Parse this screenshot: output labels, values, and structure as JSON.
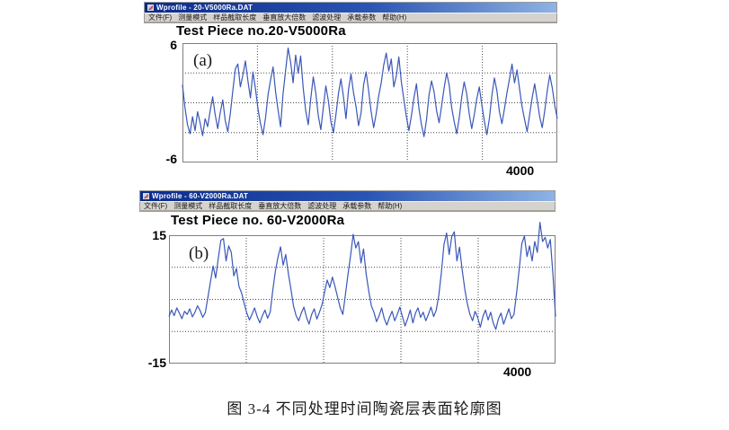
{
  "caption": "图 3-4  不同处理时间陶瓷层表面轮廓图",
  "colors": {
    "titlebar_left": "#0a2a8c",
    "titlebar_right": "#8fb3e4",
    "menubar_bg": "#d6d3ce",
    "plot_border": "#7f7f7f",
    "grid": "#4a4a4a",
    "profile_line": "#3a57b8"
  },
  "windows": [
    {
      "title": "Wprofile - 20-V5000Ra.DAT",
      "menus": [
        "文件(F)",
        "测量模式",
        "样品截取长度",
        "垂直放大倍数",
        "滤波处理",
        "承载参数",
        "帮助(H)"
      ],
      "chart_title": "Test Piece no.20-V5000Ra",
      "panel_label": "(a)",
      "y_max_label": "6",
      "y_min_label": "-6",
      "x_end_label": "4000"
    },
    {
      "title": "Wprofile - 60-V2000Ra.DAT",
      "menus": [
        "文件(F)",
        "测量模式",
        "样品截取长度",
        "垂直放大倍数",
        "滤波处理",
        "承载参数",
        "帮助(H)"
      ],
      "chart_title": "Test Piece no. 60-V2000Ra",
      "panel_label": "(b)",
      "y_max_label": "15",
      "y_min_label": "-15",
      "x_end_label": "4000"
    }
  ],
  "chart_data": [
    {
      "type": "line",
      "title": "Test Piece no.20-V5000Ra",
      "panel": "(a)",
      "xlabel": "",
      "ylabel": "",
      "x_range": [
        0,
        4000
      ],
      "ylim": [
        -6,
        6
      ],
      "x_end_tick": "4000",
      "y_tick_labels": [
        "6",
        "-6"
      ],
      "grid": true,
      "color": "#3a57b8",
      "series": [
        {
          "name": "surface profile 20-V5000Ra",
          "values": [
            1.8,
            -0.5,
            -2.2,
            -3.1,
            -1.4,
            -2.8,
            -0.9,
            -2.0,
            -3.3,
            -1.6,
            -2.4,
            -0.8,
            0.6,
            -1.2,
            -2.6,
            -1.0,
            0.3,
            -1.8,
            -2.9,
            -1.1,
            1.2,
            3.4,
            3.9,
            1.6,
            2.8,
            4.2,
            2.2,
            0.5,
            3.1,
            1.4,
            -0.6,
            -2.1,
            -3.2,
            -1.5,
            0.8,
            2.3,
            3.6,
            1.1,
            -0.7,
            -2.4,
            0.9,
            3.2,
            5.5,
            4.1,
            2.0,
            4.8,
            3.0,
            4.7,
            1.5,
            -0.8,
            -2.2,
            0.4,
            2.6,
            1.0,
            -1.3,
            -2.7,
            -0.5,
            1.7,
            0.2,
            -1.9,
            -3.0,
            -1.2,
            0.9,
            2.4,
            0.6,
            -1.6,
            1.3,
            2.9,
            1.0,
            -0.4,
            -2.3,
            -1.0,
            1.8,
            3.1,
            1.2,
            -0.9,
            -2.5,
            -1.1,
            0.7,
            2.0,
            3.8,
            5.0,
            3.2,
            4.4,
            1.6,
            2.7,
            4.6,
            2.1,
            0.3,
            -1.4,
            -2.8,
            -1.3,
            0.5,
            1.9,
            -0.6,
            -2.2,
            -3.4,
            -1.7,
            0.8,
            2.2,
            1.1,
            -0.8,
            -2.0,
            -0.3,
            1.5,
            3.0,
            1.8,
            -0.5,
            -1.9,
            -3.1,
            -1.5,
            0.6,
            2.1,
            0.9,
            -1.1,
            -2.6,
            -1.2,
            0.4,
            1.6,
            -0.2,
            -1.8,
            -3.2,
            -1.6,
            0.7,
            2.5,
            1.2,
            -0.9,
            -2.1,
            -0.6,
            1.0,
            2.4,
            3.9,
            2.0,
            3.3,
            1.4,
            -0.4,
            -1.7,
            -2.9,
            -1.2,
            0.5,
            1.9,
            0.3,
            -1.4,
            -2.5,
            -0.8,
            1.2,
            2.8,
            1.5,
            -0.3,
            -1.6
          ]
        }
      ]
    },
    {
      "type": "line",
      "title": "Test Piece no. 60-V2000Ra",
      "panel": "(b)",
      "xlabel": "",
      "ylabel": "",
      "x_range": [
        0,
        4000
      ],
      "ylim": [
        -15,
        15
      ],
      "x_end_tick": "4000",
      "y_tick_labels": [
        "15",
        "-15"
      ],
      "grid": true,
      "color": "#3a57b8",
      "series": [
        {
          "name": "surface profile 60-V2000Ra",
          "values": [
            -4.0,
            -2.5,
            -3.8,
            -2.0,
            -3.2,
            -4.5,
            -2.8,
            -3.5,
            -2.2,
            -4.1,
            -3.0,
            -1.5,
            -2.6,
            -4.2,
            -3.1,
            0.5,
            4.2,
            7.8,
            5.0,
            9.5,
            13.8,
            14.2,
            9.0,
            12.5,
            11.0,
            5.5,
            7.2,
            3.0,
            1.5,
            -1.0,
            -3.2,
            -4.8,
            -3.5,
            -2.0,
            -4.0,
            -5.5,
            -3.8,
            -2.5,
            -4.4,
            -3.0,
            2.0,
            6.5,
            9.8,
            12.3,
            8.0,
            10.5,
            6.0,
            2.5,
            -1.5,
            -3.8,
            -5.0,
            -3.2,
            -1.8,
            -4.2,
            -5.8,
            -3.5,
            -2.2,
            -4.6,
            -3.0,
            -1.2,
            1.8,
            4.5,
            2.8,
            5.2,
            3.0,
            0.5,
            -2.0,
            -3.5,
            1.0,
            5.8,
            10.2,
            15.2,
            12.0,
            13.5,
            8.5,
            11.8,
            6.0,
            2.0,
            -1.5,
            -3.0,
            -5.2,
            -3.8,
            -2.0,
            -4.5,
            -6.0,
            -4.2,
            -2.8,
            -5.0,
            -3.5,
            -1.8,
            -4.0,
            -6.2,
            -4.5,
            -2.5,
            -5.5,
            -3.2,
            -2.0,
            -4.2,
            -3.0,
            -5.0,
            -3.5,
            -1.8,
            -4.0,
            -2.6,
            0.8,
            6.2,
            12.8,
            15.5,
            10.5,
            14.7,
            15.8,
            9.0,
            12.2,
            7.0,
            2.5,
            -1.0,
            -3.5,
            -5.0,
            -2.8,
            -4.2,
            -6.5,
            -4.0,
            -2.5,
            -4.8,
            -3.0,
            -5.5,
            -7.0,
            -4.5,
            -3.2,
            -5.8,
            -4.0,
            -2.2,
            -4.5,
            -3.5,
            1.5,
            7.0,
            13.0,
            14.8,
            10.0,
            12.5,
            9.0,
            13.5,
            11.0,
            18.0,
            13.5,
            14.5,
            12.0,
            14.0,
            6.0,
            -4.0
          ]
        }
      ]
    }
  ]
}
